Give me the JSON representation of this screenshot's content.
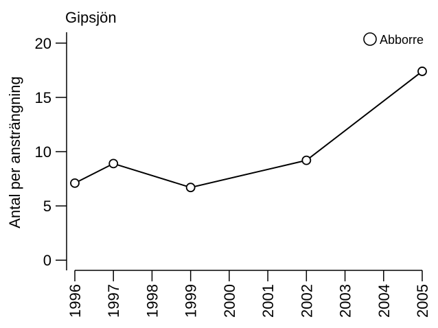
{
  "chart_data": {
    "type": "line",
    "title": "Gipsjön",
    "ylabel": "Antal per ansträngning",
    "xlabel": "",
    "x_ticks": [
      "1996",
      "1997",
      "1998",
      "1999",
      "2000",
      "2001",
      "2002",
      "2003",
      "2004",
      "2005"
    ],
    "y_ticks": [
      0,
      5,
      10,
      15,
      20
    ],
    "ylim": [
      -1,
      21
    ],
    "xlim": [
      1996,
      2005
    ],
    "grid": false,
    "legend_position": "top-right",
    "series": [
      {
        "name": "Abborre",
        "marker": "open-circle",
        "color": "#000000",
        "x": [
          1996,
          1997,
          1999,
          2002,
          2005
        ],
        "y": [
          7.1,
          8.9,
          6.7,
          9.2,
          17.4
        ]
      }
    ]
  }
}
